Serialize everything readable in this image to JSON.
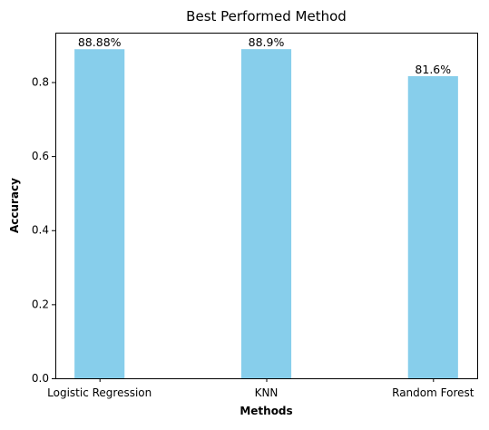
{
  "chart_data": {
    "type": "bar",
    "title": "Best Performed Method",
    "xlabel": "Methods",
    "ylabel": "Accuracy",
    "categories": [
      "Logistic Regression",
      "KNN",
      "Random Forest"
    ],
    "values": [
      0.8888,
      0.889,
      0.816
    ],
    "data_labels": [
      "88.88%",
      "88.9%",
      "81.6%"
    ],
    "ylim": [
      0,
      0.9335
    ],
    "yticks": [
      0.0,
      0.2,
      0.4,
      0.6,
      0.8
    ],
    "ytick_labels": [
      "0.0",
      "0.2",
      "0.4",
      "0.6",
      "0.8"
    ],
    "bar_color": "#87ceeb",
    "grid": false,
    "legend": "none"
  }
}
